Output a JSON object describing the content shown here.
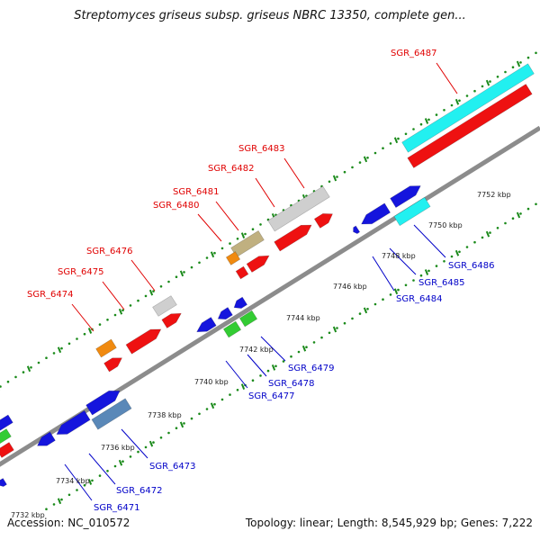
{
  "title": "Streptomyces griseus subsp. griseus NBRC 13350, complete gen...",
  "accession": "Accession: NC_010572",
  "summary": "Topology: linear; Length: 8,545,929 bp; Genes: 7,222",
  "colors": {
    "backbone": "#8c8c8c",
    "tick": "#1a8a1a",
    "red": "#ee1111",
    "blue": "#1515dd",
    "cyan": "#22f0f0",
    "gray": "#cfcfcf",
    "orange": "#f08a10",
    "olive": "#c0b080",
    "green": "#33cc33",
    "steelblue": "#5a88b8",
    "label_top": "#e00000",
    "label_bottom": "#0000c8"
  },
  "kbp_labels": [
    "7732 kbp",
    "7734 kbp",
    "7736 kbp",
    "7738 kbp",
    "7740 kbp",
    "7742 kbp",
    "7744 kbp",
    "7746 kbp",
    "7748 kbp",
    "7750 kbp",
    "7752 kbp"
  ],
  "top_labels": [
    "SGR_6474",
    "SGR_6475",
    "SGR_6476",
    "SGR_6480",
    "SGR_6481",
    "SGR_6482",
    "SGR_6483",
    "SGR_6487"
  ],
  "bottom_labels": [
    "SGR_6471",
    "SGR_6472",
    "SGR_6473",
    "SGR_6477",
    "SGR_6478",
    "SGR_6479",
    "SGR_6484",
    "SGR_6485",
    "SGR_6486"
  ]
}
